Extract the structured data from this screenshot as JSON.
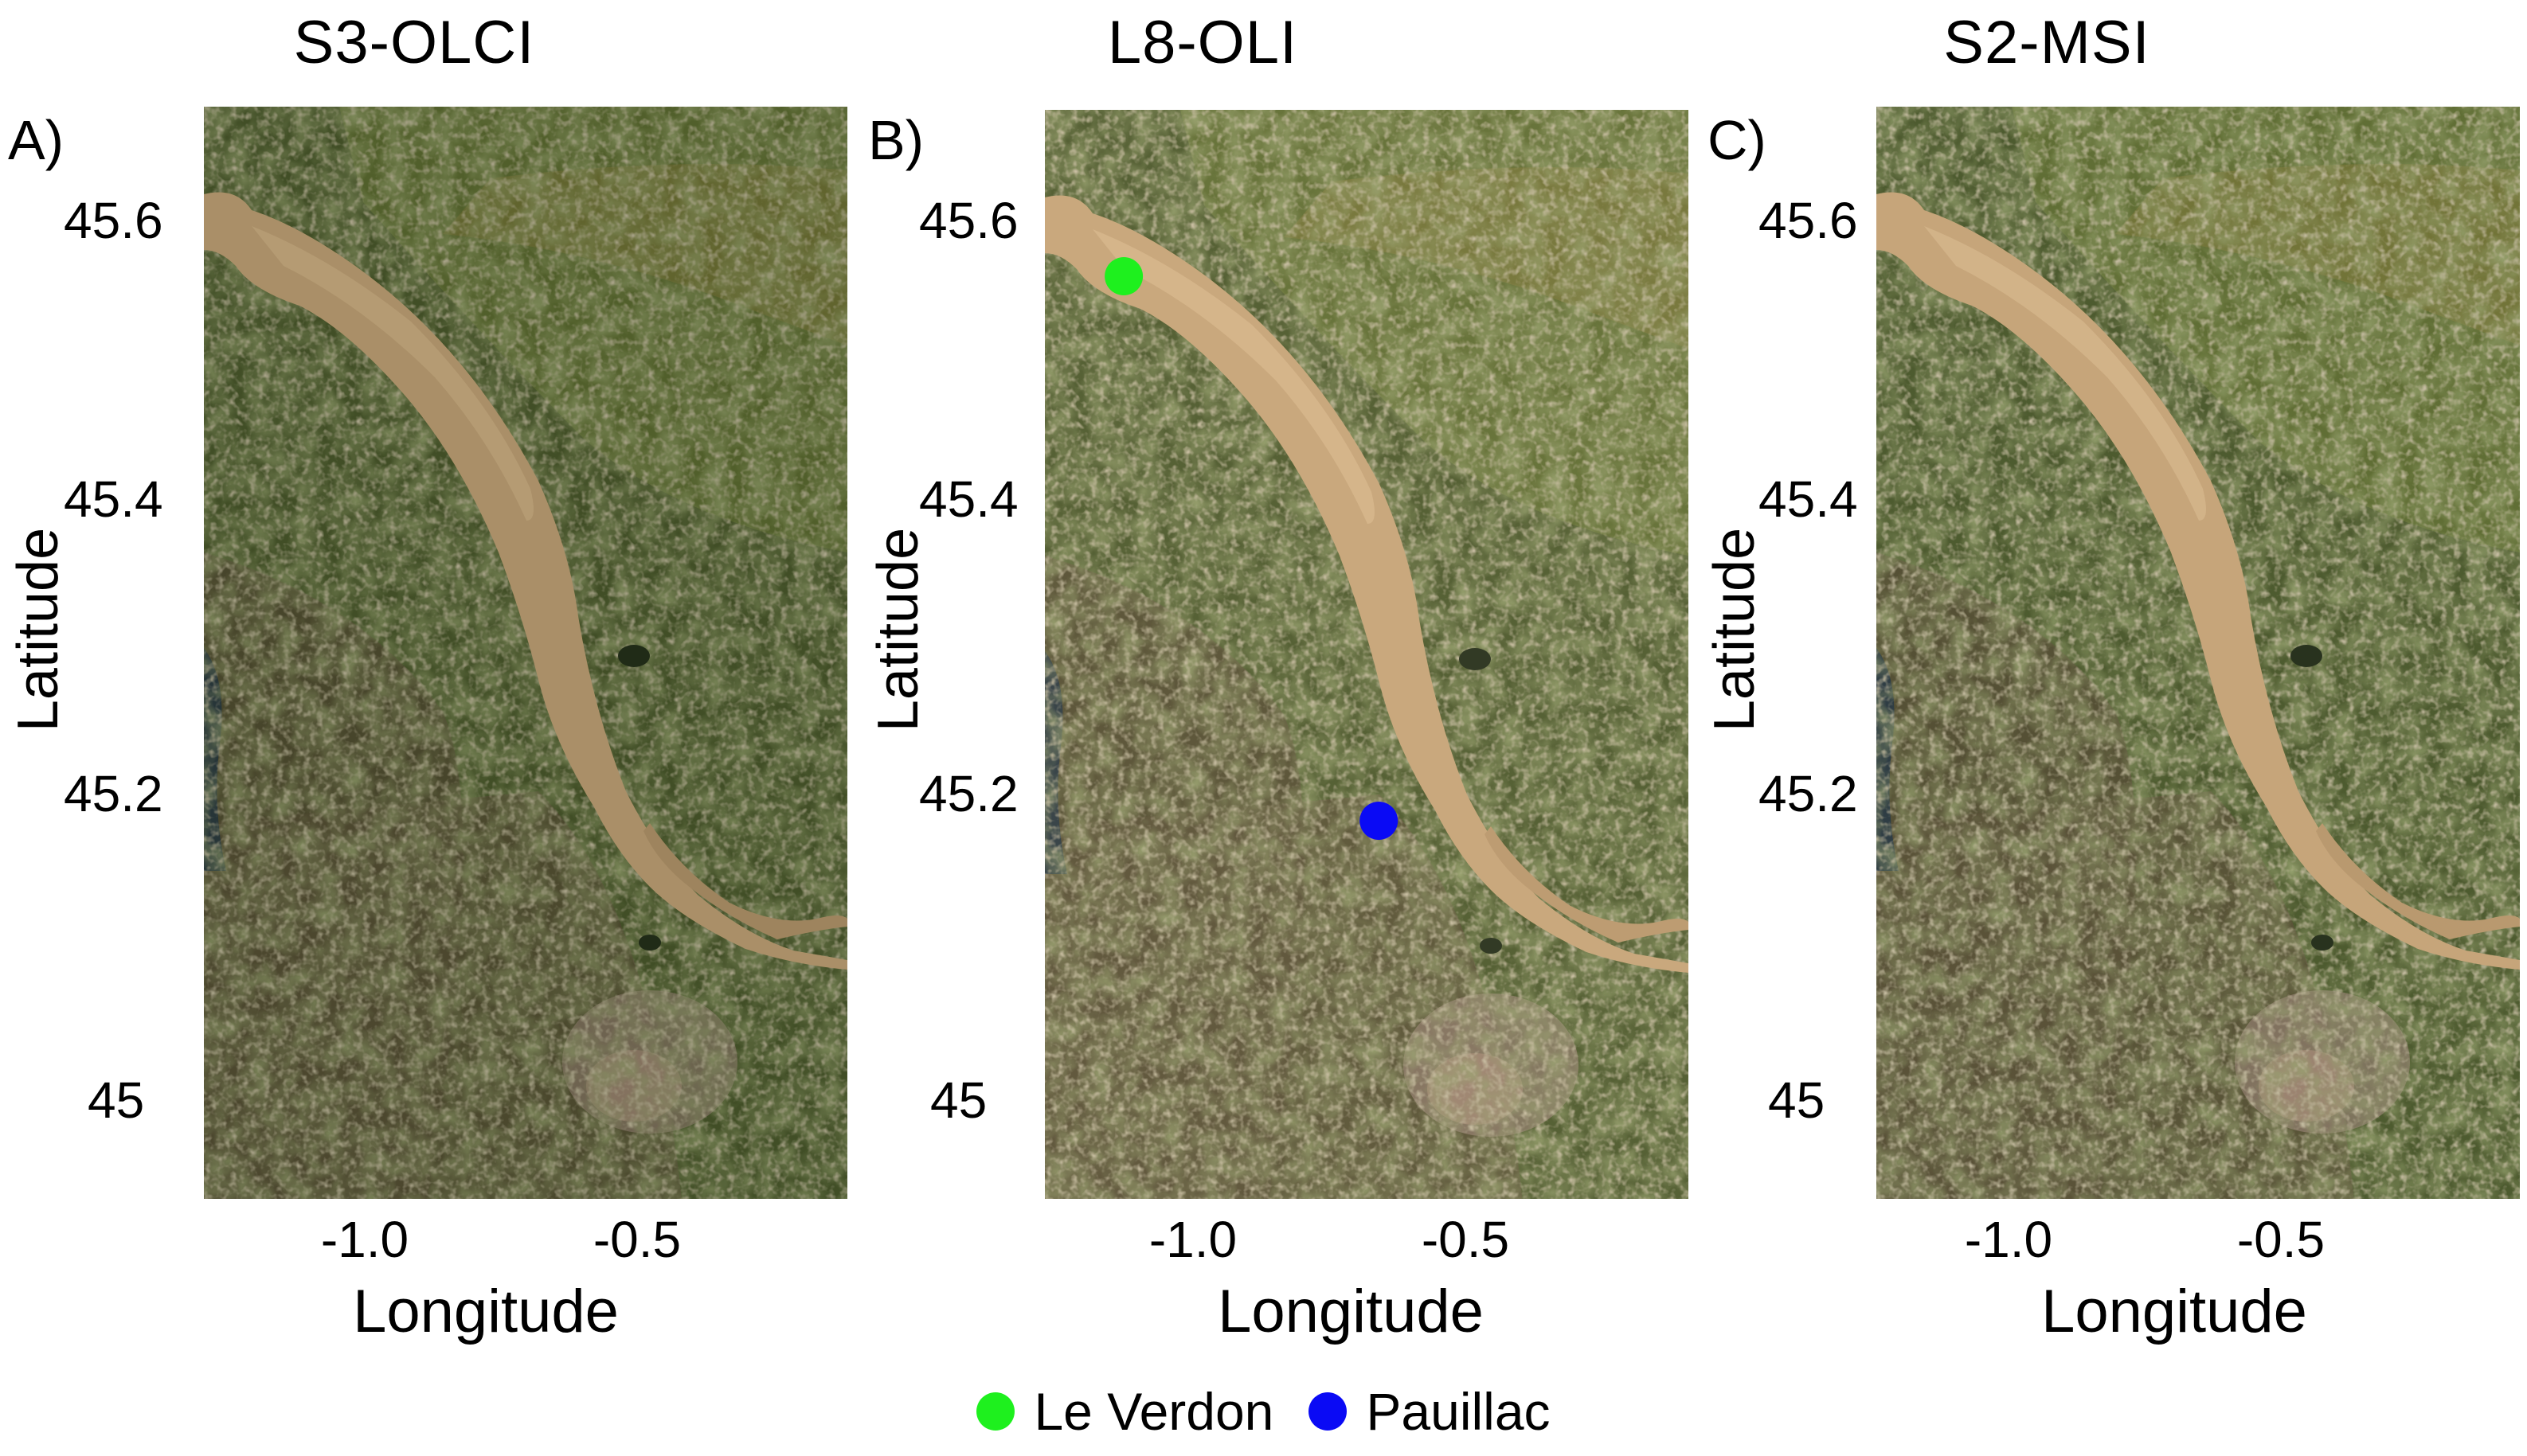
{
  "panels": [
    {
      "id": "A",
      "letter": "A)",
      "title": "S3-OLCI",
      "ylabel": "Latitude",
      "xlabel": "Longitude",
      "yticks": [
        "45.6",
        "45.4",
        "45.2",
        "45"
      ],
      "xticks": [
        "-1.0",
        "-0.5"
      ]
    },
    {
      "id": "B",
      "letter": "B)",
      "title": "L8-OLI",
      "ylabel": "Latitude",
      "xlabel": "Longitude",
      "yticks": [
        "45.6",
        "45.4",
        "45.2",
        "45"
      ],
      "xticks": [
        "-1.0",
        "-0.5"
      ]
    },
    {
      "id": "C",
      "letter": "C)",
      "title": "S2-MSI",
      "ylabel": "Latitude",
      "xlabel": "Longitude",
      "yticks": [
        "45.6",
        "45.4",
        "45.2",
        "45"
      ],
      "xticks": [
        "-1.0",
        "-0.5"
      ]
    }
  ],
  "legend": [
    {
      "label": "Le Verdon",
      "color": "#1ef01e",
      "icon": "circle-marker-icon"
    },
    {
      "label": "Pauillac",
      "color": "#0a0af5",
      "icon": "circle-marker-icon"
    }
  ],
  "markers": [
    {
      "label": "Le Verdon",
      "lon": -1.15,
      "lat": 45.56,
      "color": "#1ef01e"
    },
    {
      "label": "Pauillac",
      "lon": -0.73,
      "lat": 45.2,
      "color": "#0a0af5"
    }
  ],
  "colors": {
    "land_dark": "#3e4a26",
    "land_green": "#4c6a2c",
    "land_olive": "#6b7038",
    "land_light": "#8a8a62",
    "estuary_water": "#c4a27a",
    "estuary_water_l8": "#e0b882",
    "urban": "#9a8478",
    "ocean": "#283a3e"
  }
}
